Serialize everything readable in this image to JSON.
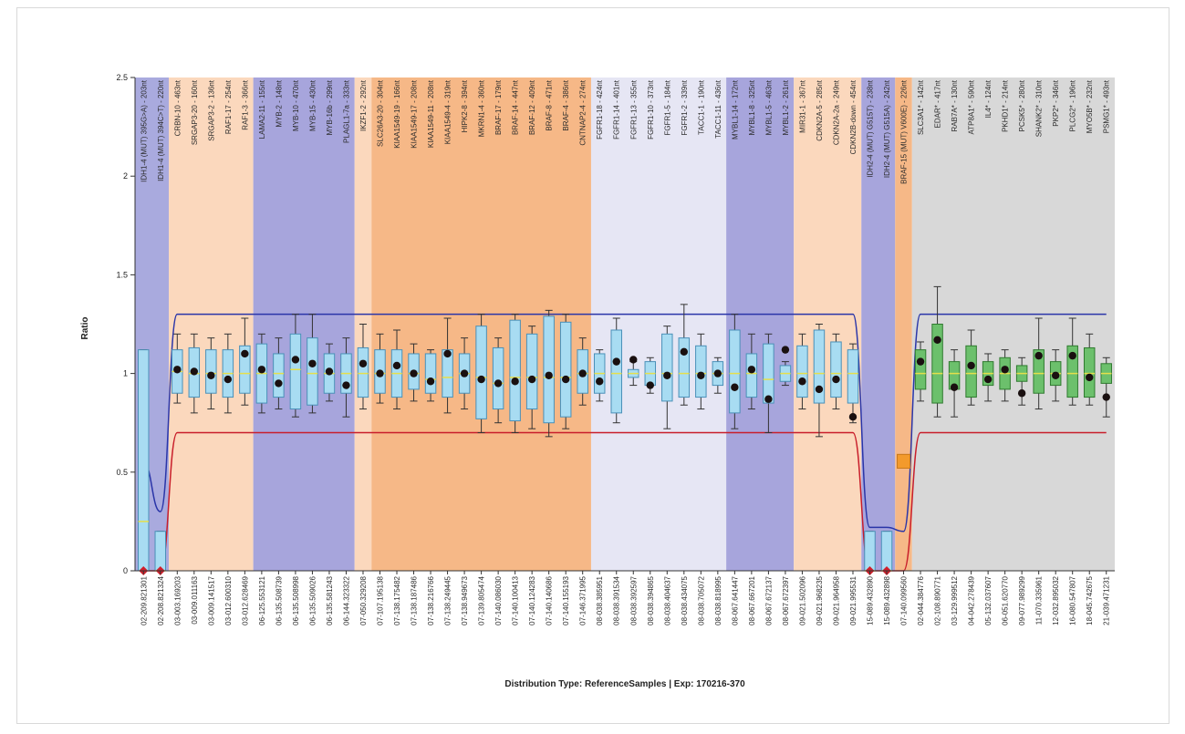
{
  "chart_data": {
    "type": "box",
    "title": "",
    "xlabel": "Distribution Type: ReferenceSamples | Exp: 170216-370",
    "ylabel": "Ratio",
    "ylim": [
      0,
      2.5
    ],
    "yticks": [
      0,
      0.5,
      1,
      1.5,
      2,
      2.5
    ],
    "grid": false,
    "probes": [
      {
        "x": "02-209.821301",
        "label": "IDH1-4 (MUT) 395G>A) - 203nt",
        "group": 0,
        "q1": 0.0,
        "q3": 1.12,
        "lo": 0.0,
        "hi": 1.12,
        "med": 0.25,
        "pt": 0.0,
        "mark": "red"
      },
      {
        "x": "02-208.821324",
        "label": "IDH1-4 (MUT) 394C>T) - 220nt",
        "group": 0,
        "q1": 0.0,
        "q3": 0.2,
        "lo": 0.0,
        "hi": 0.2,
        "med": 0.0,
        "pt": 0.0,
        "mark": "red"
      },
      {
        "x": "03-003.169203",
        "label": "CRBN-10 - 463nt",
        "group": 1,
        "q1": 0.9,
        "q3": 1.12,
        "lo": 0.85,
        "hi": 1.2,
        "med": 1.01,
        "pt": 1.02,
        "mark": "dot"
      },
      {
        "x": "03-009.011163",
        "label": "SRGAP3-20 - 160nt",
        "group": 1,
        "q1": 0.88,
        "q3": 1.13,
        "lo": 0.8,
        "hi": 1.2,
        "med": 1.0,
        "pt": 1.01,
        "mark": "dot"
      },
      {
        "x": "03-009.141517",
        "label": "SRGAP3-2 - 136nt",
        "group": 1,
        "q1": 0.9,
        "q3": 1.12,
        "lo": 0.82,
        "hi": 1.18,
        "med": 1.0,
        "pt": 0.99,
        "mark": "dot"
      },
      {
        "x": "03-012.600310",
        "label": "RAF1-17 - 254nt",
        "group": 1,
        "q1": 0.88,
        "q3": 1.12,
        "lo": 0.8,
        "hi": 1.2,
        "med": 1.0,
        "pt": 0.97,
        "mark": "dot"
      },
      {
        "x": "03-012.628469",
        "label": "RAF1-3 - 366nt",
        "group": 1,
        "q1": 0.9,
        "q3": 1.14,
        "lo": 0.84,
        "hi": 1.28,
        "med": 1.0,
        "pt": 1.1,
        "mark": "dot"
      },
      {
        "x": "06-125.553121",
        "label": "LAMA2-11 - 155nt",
        "group": 2,
        "q1": 0.85,
        "q3": 1.15,
        "lo": 0.8,
        "hi": 1.2,
        "med": 1.0,
        "pt": 1.02,
        "mark": "dot"
      },
      {
        "x": "06-135.508739",
        "label": "MYB-2 - 148nt",
        "group": 2,
        "q1": 0.88,
        "q3": 1.1,
        "lo": 0.82,
        "hi": 1.18,
        "med": 1.0,
        "pt": 0.95,
        "mark": "dot"
      },
      {
        "x": "06-135.508998",
        "label": "MYB-10 - 470nt",
        "group": 2,
        "q1": 0.82,
        "q3": 1.2,
        "lo": 0.78,
        "hi": 1.3,
        "med": 1.02,
        "pt": 1.07,
        "mark": "dot"
      },
      {
        "x": "06-135.509026",
        "label": "MYB-15 - 430nt",
        "group": 2,
        "q1": 0.84,
        "q3": 1.18,
        "lo": 0.8,
        "hi": 1.3,
        "med": 1.0,
        "pt": 1.05,
        "mark": "dot"
      },
      {
        "x": "06-135.581243",
        "label": "MYB-16b - 299nt",
        "group": 2,
        "q1": 0.9,
        "q3": 1.1,
        "lo": 0.86,
        "hi": 1.15,
        "med": 1.0,
        "pt": 1.01,
        "mark": "dot"
      },
      {
        "x": "06-144.323322",
        "label": "PLAGL1-7a - 333nt",
        "group": 2,
        "q1": 0.9,
        "q3": 1.1,
        "lo": 0.78,
        "hi": 1.18,
        "med": 1.0,
        "pt": 0.94,
        "mark": "dot"
      },
      {
        "x": "07-050.329208",
        "label": "IKZF1-2 - 292nt",
        "group": 3,
        "q1": 0.88,
        "q3": 1.13,
        "lo": 0.82,
        "hi": 1.25,
        "med": 1.0,
        "pt": 1.05,
        "mark": "dot"
      },
      {
        "x": "07-107.195138",
        "label": "SLC26A3-20 - 304nt",
        "group": 4,
        "q1": 0.9,
        "q3": 1.12,
        "lo": 0.85,
        "hi": 1.2,
        "med": 1.0,
        "pt": 1.0,
        "mark": "dot"
      },
      {
        "x": "07-138.175482",
        "label": "KIAA1549-19 - 166nt",
        "group": 4,
        "q1": 0.88,
        "q3": 1.12,
        "lo": 0.82,
        "hi": 1.22,
        "med": 1.0,
        "pt": 1.04,
        "mark": "dot"
      },
      {
        "x": "07-138.187486",
        "label": "KIAA1549-17 - 208nt",
        "group": 4,
        "q1": 0.92,
        "q3": 1.1,
        "lo": 0.86,
        "hi": 1.15,
        "med": 1.0,
        "pt": 1.0,
        "mark": "dot"
      },
      {
        "x": "07-138.216766",
        "label": "KIAA1549-11 - 208nt",
        "group": 4,
        "q1": 0.9,
        "q3": 1.1,
        "lo": 0.86,
        "hi": 1.12,
        "med": 0.97,
        "pt": 0.96,
        "mark": "dot"
      },
      {
        "x": "07-138.249445",
        "label": "KIAA1549-4 - 319nt",
        "group": 4,
        "q1": 0.88,
        "q3": 1.12,
        "lo": 0.8,
        "hi": 1.28,
        "med": 0.98,
        "pt": 1.1,
        "mark": "dot"
      },
      {
        "x": "07-138.949673",
        "label": "HIPK2-8 - 394nt",
        "group": 4,
        "q1": 0.9,
        "q3": 1.1,
        "lo": 0.82,
        "hi": 1.18,
        "med": 1.0,
        "pt": 1.0,
        "mark": "dot"
      },
      {
        "x": "07-139.805474",
        "label": "MKRN1-4 - 360nt",
        "group": 4,
        "q1": 0.77,
        "q3": 1.24,
        "lo": 0.7,
        "hi": 1.3,
        "med": 0.98,
        "pt": 0.97,
        "mark": "dot"
      },
      {
        "x": "07-140.086030",
        "label": "BRAF-17 - 179nt",
        "group": 4,
        "q1": 0.82,
        "q3": 1.13,
        "lo": 0.75,
        "hi": 1.18,
        "med": 0.95,
        "pt": 0.95,
        "mark": "dot"
      },
      {
        "x": "07-140.100413",
        "label": "BRAF-14 - 447nt",
        "group": 4,
        "q1": 0.76,
        "q3": 1.27,
        "lo": 0.7,
        "hi": 1.3,
        "med": 0.98,
        "pt": 0.96,
        "mark": "dot"
      },
      {
        "x": "07-140.124283",
        "label": "BRAF-12 - 409nt",
        "group": 4,
        "q1": 0.82,
        "q3": 1.2,
        "lo": 0.72,
        "hi": 1.24,
        "med": 0.98,
        "pt": 0.97,
        "mark": "dot"
      },
      {
        "x": "07-140.140686",
        "label": "BRAF-8 - 471nt",
        "group": 4,
        "q1": 0.75,
        "q3": 1.29,
        "lo": 0.68,
        "hi": 1.32,
        "med": 0.98,
        "pt": 0.99,
        "mark": "dot"
      },
      {
        "x": "07-140.155193",
        "label": "BRAF-4 - 386nt",
        "group": 4,
        "q1": 0.78,
        "q3": 1.26,
        "lo": 0.72,
        "hi": 1.3,
        "med": 0.98,
        "pt": 0.97,
        "mark": "dot"
      },
      {
        "x": "07-146.371995",
        "label": "CNTNAP2-4 - 274nt",
        "group": 4,
        "q1": 0.9,
        "q3": 1.12,
        "lo": 0.84,
        "hi": 1.18,
        "med": 1.0,
        "pt": 1.0,
        "mark": "dot"
      },
      {
        "x": "08-038.385951",
        "label": "FGFR1-18 - 424nt",
        "group": 5,
        "q1": 0.9,
        "q3": 1.1,
        "lo": 0.86,
        "hi": 1.12,
        "med": 1.0,
        "pt": 0.96,
        "mark": "dot"
      },
      {
        "x": "08-038.391534",
        "label": "FGFR1-14 - 401nt",
        "group": 5,
        "q1": 0.8,
        "q3": 1.22,
        "lo": 0.75,
        "hi": 1.28,
        "med": 1.0,
        "pt": 1.06,
        "mark": "dot"
      },
      {
        "x": "08-038.392597",
        "label": "FGFR1-13 - 355nt",
        "group": 5,
        "q1": 0.98,
        "q3": 1.02,
        "lo": 0.94,
        "hi": 1.06,
        "med": 1.0,
        "pt": 1.07,
        "mark": "dot"
      },
      {
        "x": "08-038.394865",
        "label": "FGFR1-10 - 373nt",
        "group": 5,
        "q1": 0.94,
        "q3": 1.06,
        "lo": 0.9,
        "hi": 1.08,
        "med": 1.0,
        "pt": 0.94,
        "mark": "dot"
      },
      {
        "x": "08-038.404637",
        "label": "FGFR1-5 - 184nt",
        "group": 5,
        "q1": 0.86,
        "q3": 1.2,
        "lo": 0.72,
        "hi": 1.24,
        "med": 1.0,
        "pt": 0.99,
        "mark": "dot"
      },
      {
        "x": "08-038.434075",
        "label": "FGFR1-2 - 339nt",
        "group": 5,
        "q1": 0.88,
        "q3": 1.18,
        "lo": 0.84,
        "hi": 1.35,
        "med": 1.0,
        "pt": 1.11,
        "mark": "dot"
      },
      {
        "x": "08-038.705072",
        "label": "TACC1-1 - 190nt",
        "group": 5,
        "q1": 0.88,
        "q3": 1.14,
        "lo": 0.82,
        "hi": 1.2,
        "med": 1.0,
        "pt": 0.99,
        "mark": "dot"
      },
      {
        "x": "08-038.818995",
        "label": "TACC1-11 - 436nt",
        "group": 5,
        "q1": 0.94,
        "q3": 1.06,
        "lo": 0.9,
        "hi": 1.08,
        "med": 1.0,
        "pt": 1.0,
        "mark": "dot"
      },
      {
        "x": "08-067.641447",
        "label": "MYBL1-14 - 172nt",
        "group": 6,
        "q1": 0.8,
        "q3": 1.22,
        "lo": 0.72,
        "hi": 1.3,
        "med": 1.0,
        "pt": 0.93,
        "mark": "dot"
      },
      {
        "x": "08-067.667201",
        "label": "MYBL1-8 - 325nt",
        "group": 6,
        "q1": 0.88,
        "q3": 1.1,
        "lo": 0.82,
        "hi": 1.2,
        "med": 1.0,
        "pt": 1.02,
        "mark": "dot"
      },
      {
        "x": "08-067.672137",
        "label": "MYBL1-5 - 463nt",
        "group": 6,
        "q1": 0.85,
        "q3": 1.15,
        "lo": 0.7,
        "hi": 1.2,
        "med": 0.97,
        "pt": 0.87,
        "mark": "dot"
      },
      {
        "x": "08-067.672397",
        "label": "MYBL1-2 - 261nt",
        "group": 6,
        "q1": 0.96,
        "q3": 1.04,
        "lo": 0.94,
        "hi": 1.06,
        "med": 1.0,
        "pt": 1.12,
        "mark": "dot"
      },
      {
        "x": "09-021.502096",
        "label": "MIR31-1 - 367nt",
        "group": 7,
        "q1": 0.88,
        "q3": 1.14,
        "lo": 0.82,
        "hi": 1.2,
        "med": 1.0,
        "pt": 0.96,
        "mark": "dot"
      },
      {
        "x": "09-021.968235",
        "label": "CDKN2A-5 - 285nt",
        "group": 7,
        "q1": 0.85,
        "q3": 1.22,
        "lo": 0.68,
        "hi": 1.25,
        "med": 1.0,
        "pt": 0.92,
        "mark": "dot"
      },
      {
        "x": "09-021.964958",
        "label": "CDKN2A-2a - 249nt",
        "group": 7,
        "q1": 0.88,
        "q3": 1.16,
        "lo": 0.82,
        "hi": 1.2,
        "med": 1.0,
        "pt": 0.97,
        "mark": "dot"
      },
      {
        "x": "09-021.995531",
        "label": "CDKN2B-down - 454nt",
        "group": 7,
        "q1": 0.85,
        "q3": 1.12,
        "lo": 0.75,
        "hi": 1.15,
        "med": 1.0,
        "pt": 0.78,
        "mark": "dot"
      },
      {
        "x": "15-089.432890",
        "label": "IDH2-4 (MUT) G515T) - 238nt",
        "group": 8,
        "q1": 0.0,
        "q3": 0.2,
        "lo": 0.0,
        "hi": 0.2,
        "med": 0.0,
        "pt": 0.0,
        "mark": "red"
      },
      {
        "x": "15-089.432898",
        "label": "IDH2-4 (MUT) G515A) - 242nt",
        "group": 8,
        "q1": 0.0,
        "q3": 0.2,
        "lo": 0.0,
        "hi": 0.2,
        "med": 0.0,
        "pt": 0.0,
        "mark": "red"
      },
      {
        "x": "07-140.099560",
        "label": "BRAF-15 (MUT) V600E) - 226nt",
        "group": 9,
        "q1": 0.54,
        "q3": 0.58,
        "lo": 0.54,
        "hi": 0.58,
        "med": 0.56,
        "pt": 0.56,
        "mark": "square"
      },
      {
        "x": "02-044.384776",
        "label": "SLC3A1* - 142nt",
        "group": 10,
        "q1": 0.92,
        "q3": 1.12,
        "lo": 0.86,
        "hi": 1.16,
        "med": 1.0,
        "pt": 1.06,
        "mark": "dot"
      },
      {
        "x": "02-108.890771",
        "label": "EDAR* - 417nt",
        "group": 10,
        "q1": 0.85,
        "q3": 1.25,
        "lo": 0.78,
        "hi": 1.44,
        "med": 1.0,
        "pt": 1.17,
        "mark": "dot"
      },
      {
        "x": "03-129.999512",
        "label": "RAB7A* - 130nt",
        "group": 10,
        "q1": 0.92,
        "q3": 1.06,
        "lo": 0.78,
        "hi": 1.12,
        "med": 1.0,
        "pt": 0.93,
        "mark": "dot"
      },
      {
        "x": "04-042.278439",
        "label": "ATP8A1* - 590nt",
        "group": 10,
        "q1": 0.88,
        "q3": 1.14,
        "lo": 0.84,
        "hi": 1.22,
        "med": 1.0,
        "pt": 1.04,
        "mark": "dot"
      },
      {
        "x": "05-132.037607",
        "label": "IL4* - 124nt",
        "group": 10,
        "q1": 0.94,
        "q3": 1.06,
        "lo": 0.86,
        "hi": 1.1,
        "med": 1.0,
        "pt": 0.97,
        "mark": "dot"
      },
      {
        "x": "06-051.620770",
        "label": "PKHD1* - 214nt",
        "group": 10,
        "q1": 0.92,
        "q3": 1.08,
        "lo": 0.86,
        "hi": 1.12,
        "med": 1.0,
        "pt": 1.02,
        "mark": "dot"
      },
      {
        "x": "09-077.989299",
        "label": "PCSK5* - 280nt",
        "group": 10,
        "q1": 0.96,
        "q3": 1.04,
        "lo": 0.84,
        "hi": 1.08,
        "med": 1.0,
        "pt": 0.9,
        "mark": "dot"
      },
      {
        "x": "11-070.335961",
        "label": "SHANK2* - 310nt",
        "group": 10,
        "q1": 0.9,
        "q3": 1.12,
        "lo": 0.82,
        "hi": 1.28,
        "med": 1.0,
        "pt": 1.09,
        "mark": "dot"
      },
      {
        "x": "12-032.895032",
        "label": "PKP2* - 346nt",
        "group": 10,
        "q1": 0.94,
        "q3": 1.06,
        "lo": 0.86,
        "hi": 1.12,
        "med": 1.0,
        "pt": 0.99,
        "mark": "dot"
      },
      {
        "x": "16-080.547807",
        "label": "PLCG2* - 196nt",
        "group": 10,
        "q1": 0.88,
        "q3": 1.14,
        "lo": 0.84,
        "hi": 1.28,
        "med": 1.0,
        "pt": 1.09,
        "mark": "dot"
      },
      {
        "x": "18-045.742675",
        "label": "MYO5B* - 232nt",
        "group": 10,
        "q1": 0.88,
        "q3": 1.13,
        "lo": 0.84,
        "hi": 1.2,
        "med": 1.0,
        "pt": 0.98,
        "mark": "dot"
      },
      {
        "x": "21-039.471231",
        "label": "PSMG1* - 493nt",
        "group": 10,
        "q1": 0.95,
        "q3": 1.05,
        "lo": 0.78,
        "hi": 1.08,
        "med": 1.0,
        "pt": 0.88,
        "mark": "dot"
      }
    ],
    "bands": [
      {
        "start": 0,
        "end": 1,
        "color": "#a9aade"
      },
      {
        "start": 2,
        "end": 6,
        "color": "#fbd8bd"
      },
      {
        "start": 7,
        "end": 12,
        "color": "#a7a5dc"
      },
      {
        "start": 13,
        "end": 13,
        "color": "#fbd8bd"
      },
      {
        "start": 14,
        "end": 26,
        "color": "#f6b887"
      },
      {
        "start": 27,
        "end": 34,
        "color": "#e6e6f4"
      },
      {
        "start": 35,
        "end": 38,
        "color": "#a7a5dc"
      },
      {
        "start": 39,
        "end": 42,
        "color": "#fbd8bd"
      },
      {
        "start": 43,
        "end": 44,
        "color": "#a7a5dc"
      },
      {
        "start": 45,
        "end": 45,
        "color": "#f6b887"
      },
      {
        "start": 46,
        "end": 57,
        "color": "#d8d8d8"
      }
    ],
    "upper_limit": {
      "name": "",
      "color": "#2a35a8"
    },
    "lower_limit": {
      "name": "",
      "color": "#c81d2a"
    },
    "colors": {
      "box_blue": "#a8dcf2",
      "box_blue_stroke": "#4a90b8",
      "box_green": "#6cc06c",
      "box_green_stroke": "#2f7a2f",
      "median": "#e6df4a",
      "point": "#1a1010",
      "red_marker": "#d21f2b",
      "square_marker": "#f39a2c",
      "axis": "#333333"
    }
  }
}
